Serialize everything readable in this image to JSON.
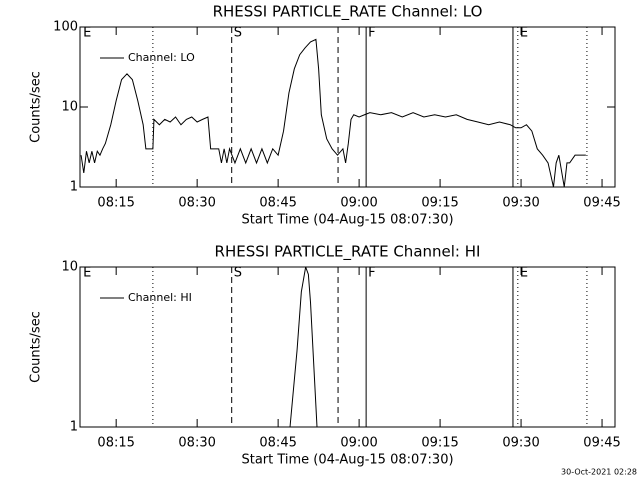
{
  "chart_data": [
    {
      "type": "line",
      "title": "RHESSI PARTICLE_RATE Channel: LO",
      "x_label": "Start Time (04-Aug-15 08:07:30)",
      "y_label": "Counts/sec",
      "log_y": true,
      "ylim": [
        1,
        100
      ],
      "yticks": [
        1,
        10,
        100
      ],
      "xlim": [
        8.3,
        107.4
      ],
      "xticks": [
        {
          "value": 15,
          "label": "08:15"
        },
        {
          "value": 30,
          "label": "08:30"
        },
        {
          "value": 45,
          "label": "08:45"
        },
        {
          "value": 60,
          "label": "09:00"
        },
        {
          "value": 75,
          "label": "09:15"
        },
        {
          "value": 90,
          "label": "09:30"
        },
        {
          "value": 105,
          "label": "09:45"
        }
      ],
      "x": [
        8.5,
        9.0,
        9.5,
        10,
        10.5,
        11,
        11.5,
        12,
        12.5,
        13,
        14,
        15,
        16,
        17,
        18,
        19,
        20,
        20.5,
        21,
        21.8,
        22,
        23,
        24,
        25,
        26,
        27,
        28,
        29,
        30,
        31,
        32,
        32.5,
        33,
        34,
        34.5,
        35,
        35.5,
        36,
        37,
        38,
        39,
        40,
        41,
        42,
        43,
        44,
        45,
        46,
        47,
        48,
        49,
        50,
        51,
        52,
        52.5,
        53,
        54,
        55,
        56,
        57,
        57.5,
        58,
        58.5,
        59,
        60,
        61,
        62,
        64,
        66,
        68,
        70,
        72,
        74,
        76,
        78,
        80,
        82,
        84,
        86,
        88,
        89,
        90,
        91,
        92,
        93,
        94,
        95,
        96,
        96.5,
        97,
        98,
        98.5,
        99,
        100,
        101,
        102
      ],
      "series": [
        {
          "name": "Channel: LO",
          "color": "#000000",
          "values": [
            2.5,
            1.5,
            2.8,
            2,
            2.8,
            2,
            2.8,
            2.5,
            3,
            3.5,
            6,
            12,
            22,
            26,
            22,
            12,
            6,
            3,
            3,
            3,
            7,
            6,
            7,
            6.5,
            7.5,
            6,
            7,
            7.5,
            6.5,
            7,
            7.5,
            3,
            3,
            3,
            2,
            3,
            2,
            3,
            2,
            3,
            2,
            3,
            2,
            3,
            2,
            3,
            2.5,
            5,
            15,
            30,
            45,
            55,
            65,
            70,
            30,
            8,
            4,
            3,
            2.5,
            3,
            2,
            3.5,
            7,
            8,
            7.5,
            8,
            8.5,
            8,
            8.5,
            7.5,
            8.5,
            7.5,
            8,
            7.5,
            8,
            7,
            6.5,
            6,
            6.5,
            6,
            5.5,
            5.5,
            6,
            5,
            3,
            2.5,
            2,
            1,
            2,
            2.5,
            1,
            2,
            2,
            2.5,
            2.5,
            2.5
          ]
        }
      ],
      "markers": [
        {
          "x": 21.8,
          "style": "dotted"
        },
        {
          "x": 36.4,
          "style": "dashed"
        },
        {
          "x": 56.1,
          "style": "dashed"
        },
        {
          "x": 61.3,
          "style": "solid"
        },
        {
          "x": 88.5,
          "style": "solid"
        },
        {
          "x": 89.4,
          "style": "dotted"
        },
        {
          "x": 102.2,
          "style": "dotted"
        }
      ],
      "marker_labels": [
        {
          "x": 8.5,
          "label": "E"
        },
        {
          "x": 36.4,
          "label": "S"
        },
        {
          "x": 61.3,
          "label": "F"
        },
        {
          "x": 89.4,
          "label": "E"
        }
      ]
    },
    {
      "type": "line",
      "title": "RHESSI PARTICLE_RATE Channel: HI",
      "x_label": "Start Time (04-Aug-15 08:07:30)",
      "y_label": "Counts/sec",
      "log_y": true,
      "ylim": [
        1,
        10
      ],
      "yticks": [
        1,
        10
      ],
      "xlim": [
        8.3,
        107.4
      ],
      "xticks": [
        {
          "value": 15,
          "label": "08:15"
        },
        {
          "value": 30,
          "label": "08:30"
        },
        {
          "value": 45,
          "label": "08:45"
        },
        {
          "value": 60,
          "label": "09:00"
        },
        {
          "value": 75,
          "label": "09:15"
        },
        {
          "value": 90,
          "label": "09:30"
        },
        {
          "value": 105,
          "label": "09:45"
        }
      ],
      "x": [
        47.2,
        48.5,
        49.3,
        50.1,
        50.6,
        51.0,
        52.2
      ],
      "series": [
        {
          "name": "Channel: HI",
          "color": "#000000",
          "values": [
            1,
            3,
            7,
            10,
            9,
            6,
            1
          ]
        }
      ],
      "markers": [
        {
          "x": 21.8,
          "style": "dotted"
        },
        {
          "x": 36.4,
          "style": "dashed"
        },
        {
          "x": 56.1,
          "style": "dashed"
        },
        {
          "x": 61.3,
          "style": "solid"
        },
        {
          "x": 88.5,
          "style": "solid"
        },
        {
          "x": 89.4,
          "style": "dotted"
        },
        {
          "x": 102.2,
          "style": "dotted"
        }
      ],
      "marker_labels": [
        {
          "x": 8.5,
          "label": "E"
        },
        {
          "x": 36.4,
          "label": "S"
        },
        {
          "x": 61.3,
          "label": "F"
        },
        {
          "x": 89.4,
          "label": "E"
        }
      ]
    }
  ],
  "footer": "30-Oct-2021 02:28"
}
